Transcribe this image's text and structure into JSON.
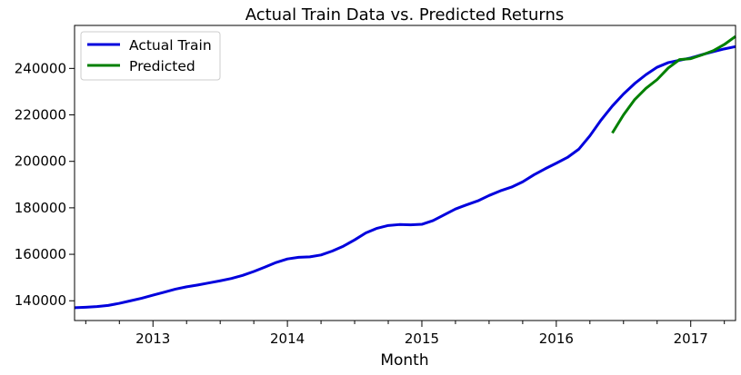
{
  "chart_data": {
    "type": "line",
    "title": "Actual Train Data vs. Predicted Returns",
    "xlabel": "Month",
    "ylabel": "",
    "xlim": [
      "2012-06",
      "2017-05"
    ],
    "ylim": [
      131500,
      258500
    ],
    "yticks": [
      140000,
      160000,
      180000,
      200000,
      220000,
      240000
    ],
    "xticks": [
      {
        "date": "2013-01",
        "label": "2013"
      },
      {
        "date": "2014-01",
        "label": "2014"
      },
      {
        "date": "2015-01",
        "label": "2015"
      },
      {
        "date": "2016-01",
        "label": "2016"
      },
      {
        "date": "2017-01",
        "label": "2017"
      }
    ],
    "grid": false,
    "legend_position": "top-left",
    "series": [
      {
        "name": "Actual Train",
        "color": "#0000dd",
        "points": [
          [
            "2012-06",
            137000
          ],
          [
            "2012-07",
            137200
          ],
          [
            "2012-08",
            137500
          ],
          [
            "2012-09",
            138000
          ],
          [
            "2012-10",
            138900
          ],
          [
            "2012-11",
            140000
          ],
          [
            "2012-12",
            141100
          ],
          [
            "2013-01",
            142400
          ],
          [
            "2013-02",
            143700
          ],
          [
            "2013-03",
            145000
          ],
          [
            "2013-04",
            146000
          ],
          [
            "2013-05",
            146800
          ],
          [
            "2013-06",
            147700
          ],
          [
            "2013-07",
            148600
          ],
          [
            "2013-08",
            149600
          ],
          [
            "2013-09",
            150900
          ],
          [
            "2013-10",
            152600
          ],
          [
            "2013-11",
            154500
          ],
          [
            "2013-12",
            156500
          ],
          [
            "2014-01",
            158000
          ],
          [
            "2014-02",
            158700
          ],
          [
            "2014-03",
            158900
          ],
          [
            "2014-04",
            159700
          ],
          [
            "2014-05",
            161400
          ],
          [
            "2014-06",
            163500
          ],
          [
            "2014-07",
            166200
          ],
          [
            "2014-08",
            169200
          ],
          [
            "2014-09",
            171200
          ],
          [
            "2014-10",
            172400
          ],
          [
            "2014-11",
            172800
          ],
          [
            "2014-12",
            172700
          ],
          [
            "2015-01",
            172900
          ],
          [
            "2015-02",
            174500
          ],
          [
            "2015-03",
            177000
          ],
          [
            "2015-04",
            179500
          ],
          [
            "2015-05",
            181300
          ],
          [
            "2015-06",
            183000
          ],
          [
            "2015-07",
            185300
          ],
          [
            "2015-08",
            187300
          ],
          [
            "2015-09",
            188900
          ],
          [
            "2015-10",
            191200
          ],
          [
            "2015-11",
            194200
          ],
          [
            "2015-12",
            196800
          ],
          [
            "2016-01",
            199200
          ],
          [
            "2016-02",
            201700
          ],
          [
            "2016-03",
            205200
          ],
          [
            "2016-04",
            211000
          ],
          [
            "2016-05",
            217800
          ],
          [
            "2016-06",
            223800
          ],
          [
            "2016-07",
            229000
          ],
          [
            "2016-08",
            233500
          ],
          [
            "2016-09",
            237300
          ],
          [
            "2016-10",
            240500
          ],
          [
            "2016-11",
            242500
          ],
          [
            "2016-12",
            243500
          ],
          [
            "2017-01",
            244500
          ],
          [
            "2017-02",
            245900
          ],
          [
            "2017-03",
            247200
          ],
          [
            "2017-04",
            248400
          ],
          [
            "2017-05",
            249400
          ]
        ]
      },
      {
        "name": "Predicted",
        "color": "#008000",
        "points": [
          [
            "2016-06",
            212200
          ],
          [
            "2016-07",
            220000
          ],
          [
            "2016-08",
            226600
          ],
          [
            "2016-09",
            231400
          ],
          [
            "2016-10",
            235200
          ],
          [
            "2016-11",
            240200
          ],
          [
            "2016-12",
            243800
          ],
          [
            "2017-01",
            244200
          ],
          [
            "2017-02",
            245800
          ],
          [
            "2017-03",
            247600
          ],
          [
            "2017-04",
            250300
          ],
          [
            "2017-05",
            253800
          ]
        ]
      }
    ]
  }
}
